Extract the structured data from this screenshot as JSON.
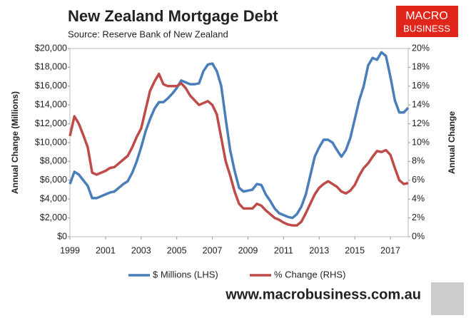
{
  "chart_data": {
    "type": "line",
    "title": "New Zealand Mortgage Debt",
    "subtitle": "Source: Reserve Bank of New Zealand",
    "y_label": "Annual Change (Millions)",
    "y2_label": "Annual Change",
    "logo": [
      "MACRO",
      "BUSINESS"
    ],
    "website": "www.macrobusiness.com.au",
    "x": [
      1999,
      1999.25,
      1999.5,
      1999.75,
      2000,
      2000.25,
      2000.5,
      2000.75,
      2001,
      2001.25,
      2001.5,
      2001.75,
      2002,
      2002.25,
      2002.5,
      2002.75,
      2003,
      2003.25,
      2003.5,
      2003.75,
      2004,
      2004.25,
      2004.5,
      2004.75,
      2005,
      2005.25,
      2005.5,
      2005.75,
      2006,
      2006.25,
      2006.5,
      2006.75,
      2007,
      2007.25,
      2007.5,
      2007.75,
      2008,
      2008.25,
      2008.5,
      2008.75,
      2009,
      2009.25,
      2009.5,
      2009.75,
      2010,
      2010.25,
      2010.5,
      2010.75,
      2011,
      2011.25,
      2011.5,
      2011.75,
      2012,
      2012.25,
      2012.5,
      2012.75,
      2013,
      2013.25,
      2013.5,
      2013.75,
      2014,
      2014.25,
      2014.5,
      2014.75,
      2015,
      2015.25,
      2015.5,
      2015.75,
      2016,
      2016.25,
      2016.5,
      2016.75,
      2017,
      2017.25,
      2017.5,
      2017.75,
      2018
    ],
    "series": [
      {
        "name": "$ Millions (LHS)",
        "color": "#4a7ebb",
        "values": [
          5600,
          6900,
          6600,
          6000,
          5400,
          4100,
          4100,
          4300,
          4500,
          4700,
          4800,
          5200,
          5600,
          5900,
          6800,
          8000,
          9500,
          11200,
          12500,
          13600,
          14300,
          14300,
          14700,
          15200,
          15800,
          16600,
          16400,
          16200,
          16200,
          16300,
          17600,
          18300,
          18400,
          17600,
          16000,
          12500,
          9200,
          7000,
          5200,
          4800,
          4900,
          5000,
          5600,
          5500,
          4500,
          3800,
          3000,
          2500,
          2300,
          2100,
          2000,
          2400,
          3200,
          4500,
          6500,
          8500,
          9500,
          10300,
          10300,
          10000,
          9200,
          8500,
          9200,
          10500,
          12500,
          14500,
          16000,
          18200,
          19000,
          18800,
          19600,
          19200,
          17000,
          14500,
          13200,
          13200,
          13700
        ]
      },
      {
        "name": "% Change (RHS)",
        "color": "#be4b48",
        "axis": "y2",
        "values": [
          10.7,
          12.8,
          12.0,
          10.8,
          9.5,
          6.8,
          6.6,
          6.8,
          7.0,
          7.3,
          7.4,
          7.8,
          8.2,
          8.6,
          9.5,
          10.6,
          11.5,
          13.5,
          15.5,
          16.5,
          17.3,
          16.2,
          16.0,
          16.0,
          16.0,
          16.3,
          15.8,
          15.0,
          14.5,
          14.0,
          14.2,
          14.4,
          14.0,
          13.0,
          10.5,
          8.0,
          6.5,
          4.8,
          3.5,
          3.0,
          3.0,
          3.0,
          3.5,
          3.3,
          2.8,
          2.4,
          2.0,
          1.8,
          1.5,
          1.3,
          1.2,
          1.2,
          1.6,
          2.5,
          3.5,
          4.5,
          5.2,
          5.6,
          5.9,
          5.6,
          5.3,
          4.8,
          4.6,
          4.9,
          5.5,
          6.5,
          7.3,
          7.8,
          8.5,
          9.1,
          9.0,
          9.2,
          8.7,
          7.3,
          6.0,
          5.6,
          5.7
        ]
      }
    ],
    "xlim": [
      1999,
      2018
    ],
    "xticks": [
      1999,
      2001,
      2003,
      2005,
      2007,
      2009,
      2011,
      2013,
      2015,
      2017
    ],
    "ylim": [
      0,
      20000
    ],
    "yticks": [
      {
        "value": 0,
        "label": "$0"
      },
      {
        "value": 2000,
        "label": "$2,000"
      },
      {
        "value": 4000,
        "label": "$4,000"
      },
      {
        "value": 6000,
        "label": "$6,000"
      },
      {
        "value": 8000,
        "label": "$8,000"
      },
      {
        "value": 10000,
        "label": "$10,000"
      },
      {
        "value": 12000,
        "label": "$12,000"
      },
      {
        "value": 14000,
        "label": "$14,000"
      },
      {
        "value": 16000,
        "label": "$16,000"
      },
      {
        "value": 18000,
        "label": "$18,000"
      },
      {
        "value": 20000,
        "label": "$20,000"
      }
    ],
    "y2lim": [
      0,
      20
    ],
    "y2ticks": [
      {
        "value": 0,
        "label": "0%"
      },
      {
        "value": 2,
        "label": "2%"
      },
      {
        "value": 4,
        "label": "4%"
      },
      {
        "value": 6,
        "label": "6%"
      },
      {
        "value": 8,
        "label": "8%"
      },
      {
        "value": 10,
        "label": "10%"
      },
      {
        "value": 12,
        "label": "12%"
      },
      {
        "value": 14,
        "label": "14%"
      },
      {
        "value": 16,
        "label": "16%"
      },
      {
        "value": 18,
        "label": "18%"
      },
      {
        "value": 20,
        "label": "20%"
      }
    ],
    "legend": "bottom"
  }
}
